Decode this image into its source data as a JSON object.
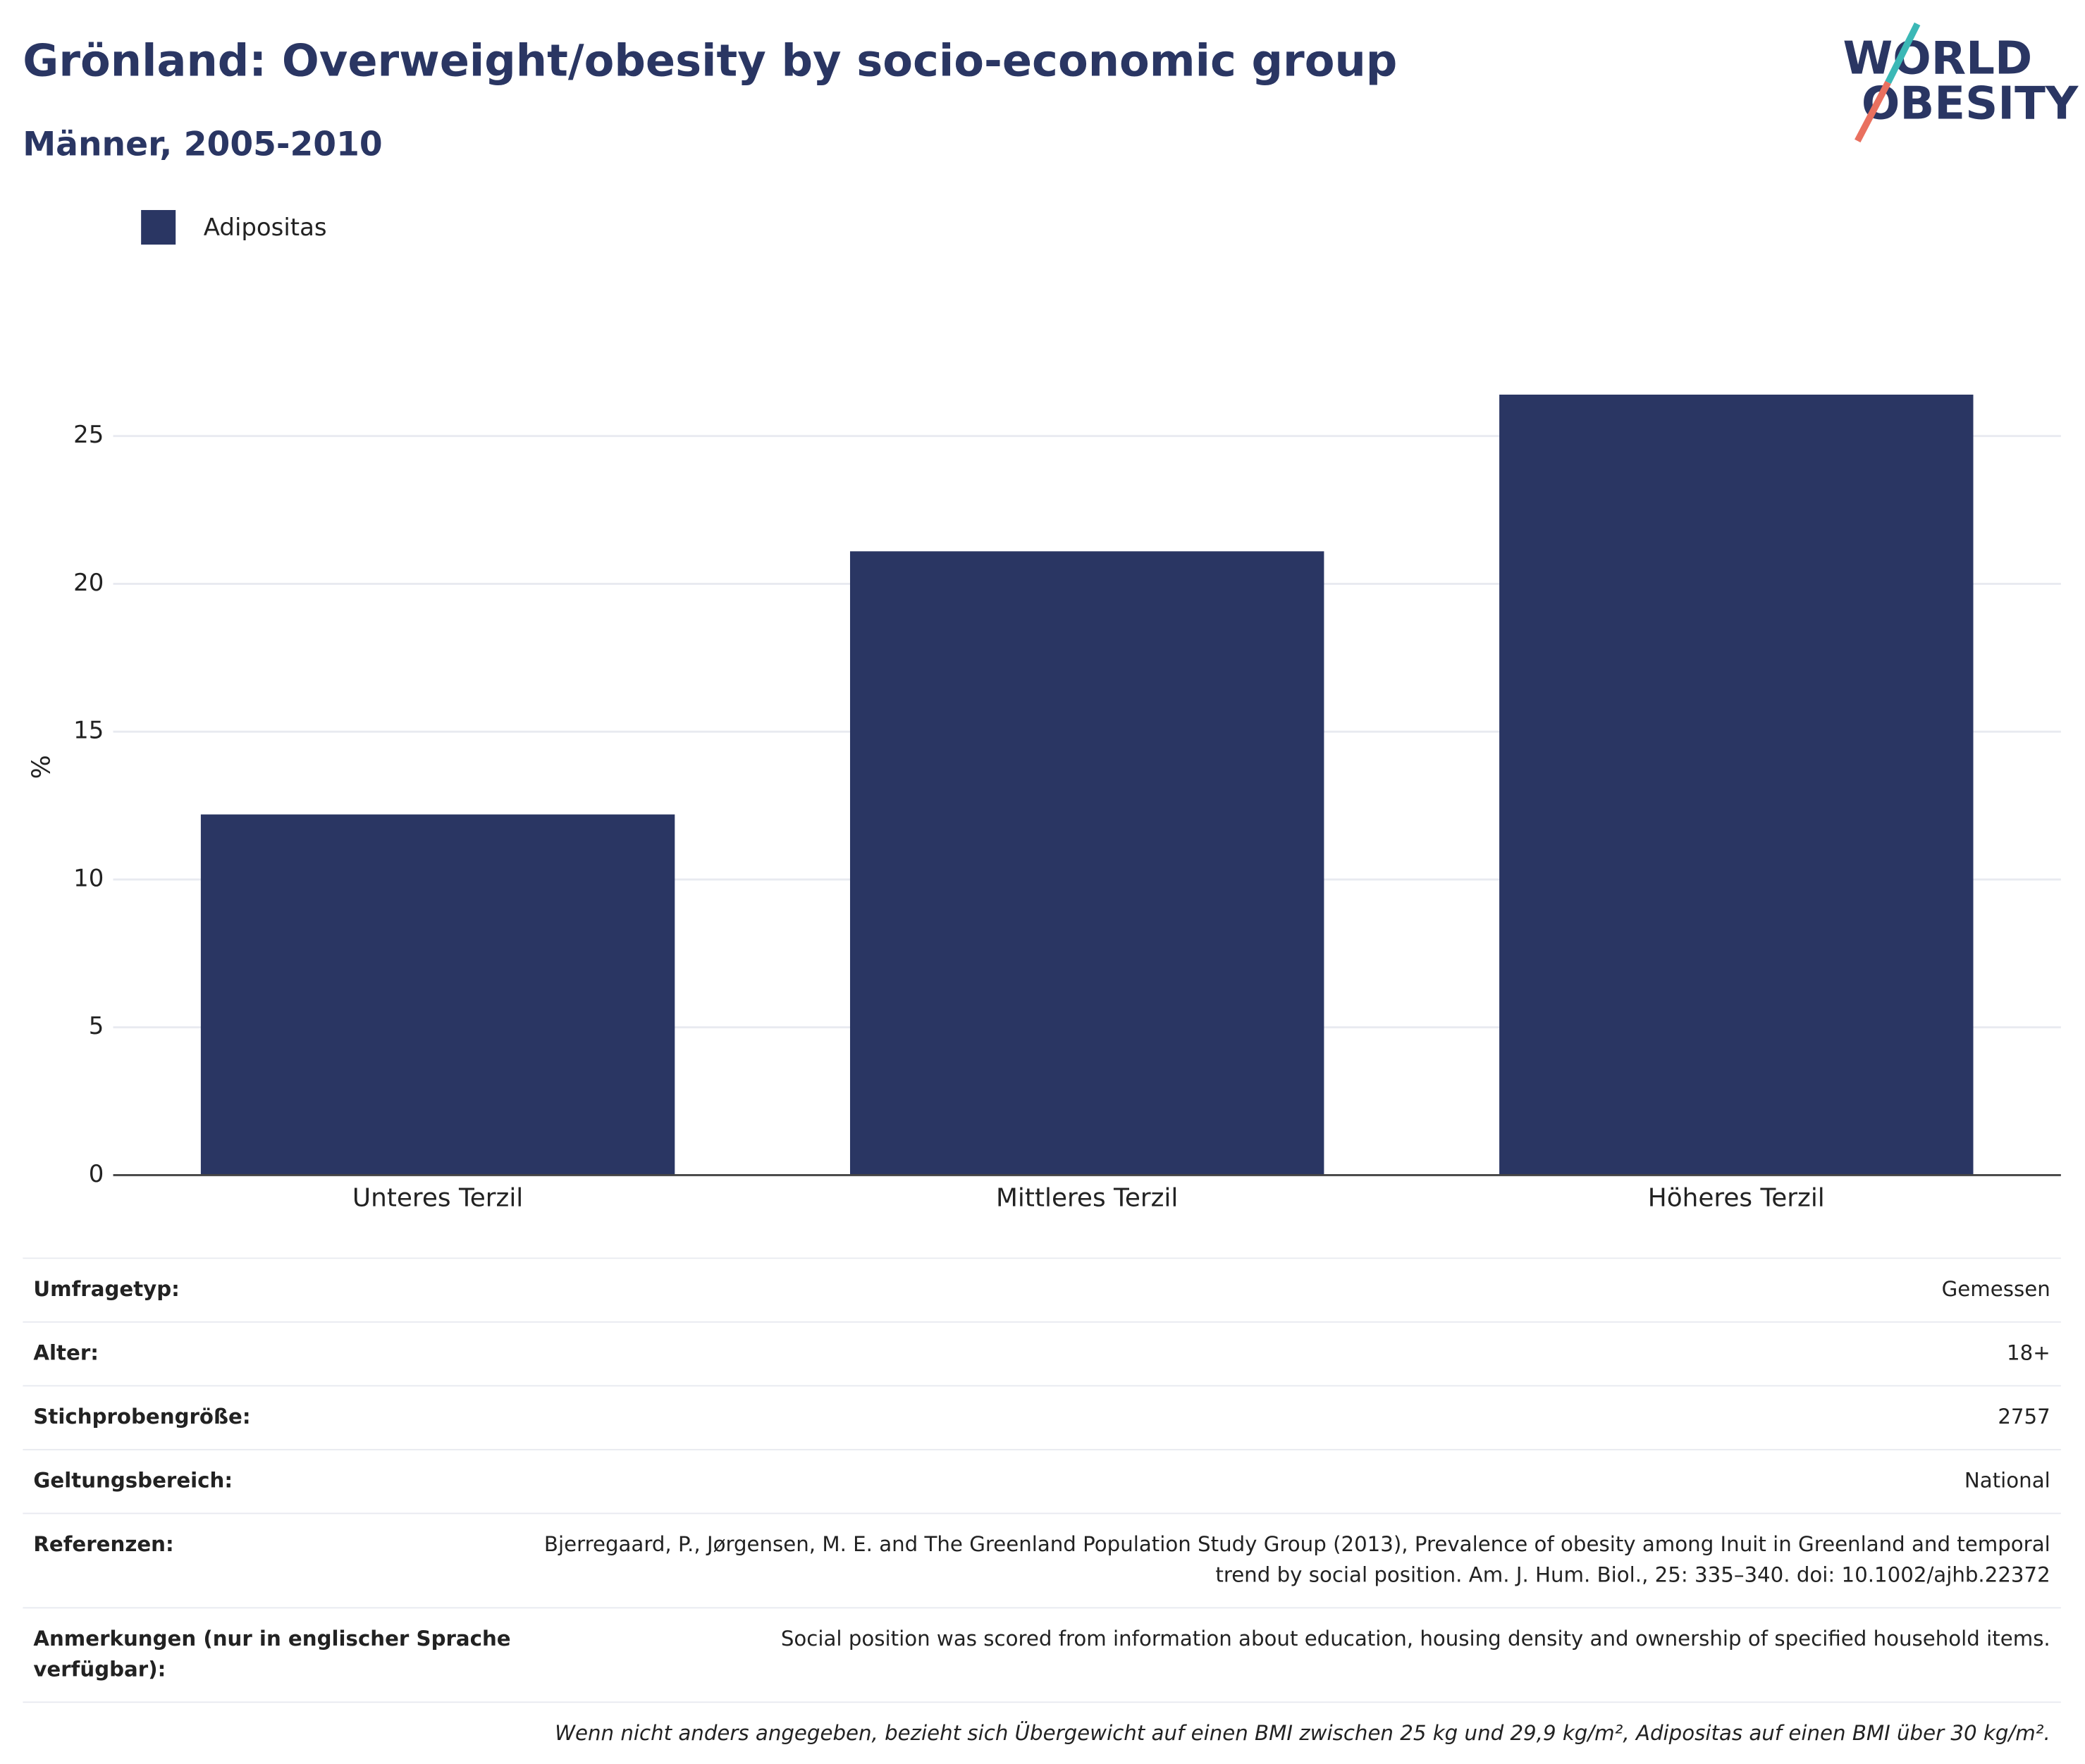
{
  "chart_data": {
    "type": "bar",
    "title": "Grönland: Overweight/obesity by socio-economic group",
    "subtitle": "Männer, 2005-2010",
    "logo": [
      "WORLD",
      "OBESITY"
    ],
    "y_label": "%",
    "categories": [
      "Unteres Terzil",
      "Mittleres Terzil",
      "Höheres Terzil"
    ],
    "series": [
      {
        "name": "Adipositas",
        "color": "#2a3663",
        "values": [
          12.2,
          21.1,
          26.4
        ]
      }
    ],
    "ylim": [
      0,
      27.5
    ],
    "yticks": [
      0,
      5,
      10,
      15,
      20,
      25
    ],
    "grid": true,
    "legend": "top-left"
  },
  "table": {
    "rows": [
      [
        "Umfragetyp:",
        "Gemessen"
      ],
      [
        "Alter:",
        "18+"
      ],
      [
        "Stichprobengröße:",
        "2757"
      ],
      [
        "Geltungsbereich:",
        "National"
      ],
      [
        "Referenzen:",
        "Bjerregaard, P., Jørgensen, M. E. and The Greenland Population Study Group (2013), Prevalence of obesity among Inuit in Greenland and temporal trend by social position. Am. J. Hum. Biol., 25: 335–340. doi: 10.1002/ajhb.22372"
      ],
      [
        "Anmerkungen (nur in englischer Sprache verfügbar):",
        "Social position was scored from information about education, housing density and ownership of specified household items."
      ]
    ],
    "footnote": "Wenn nicht anders angegeben, bezieht sich Übergewicht auf einen BMI zwischen 25 kg und 29,9 kg/m², Adipositas auf einen BMI über 30 kg/m²."
  }
}
